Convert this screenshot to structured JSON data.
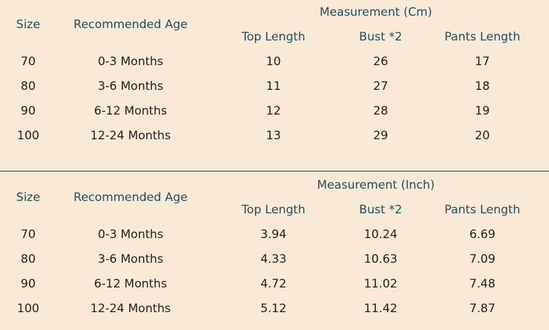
{
  "tables": [
    {
      "header": {
        "size": "Size",
        "age": "Recommended Age",
        "group": "Measurement (Cm)",
        "columns": [
          "Top Length",
          "Bust *2",
          "Pants Length"
        ]
      },
      "rows": [
        [
          "70",
          "0-3 Months",
          "10",
          "26",
          "17"
        ],
        [
          "80",
          "3-6 Months",
          "11",
          "27",
          "18"
        ],
        [
          "90",
          "6-12 Months",
          "12",
          "28",
          "19"
        ],
        [
          "100",
          "12-24 Months",
          "13",
          "29",
          "20"
        ]
      ]
    },
    {
      "header": {
        "size": "Size",
        "age": "Recommended Age",
        "group": "Measurement (Inch)",
        "columns": [
          "Top Length",
          "Bust *2",
          "Pants Length"
        ]
      },
      "rows": [
        [
          "70",
          "0-3 Months",
          "3.94",
          "10.24",
          "6.69"
        ],
        [
          "80",
          "3-6 Months",
          "4.33",
          "10.63",
          "7.09"
        ],
        [
          "90",
          "6-12 Months",
          "4.72",
          "11.02",
          "7.48"
        ],
        [
          "100",
          "12-24 Months",
          "5.12",
          "11.42",
          "7.87"
        ]
      ]
    }
  ]
}
